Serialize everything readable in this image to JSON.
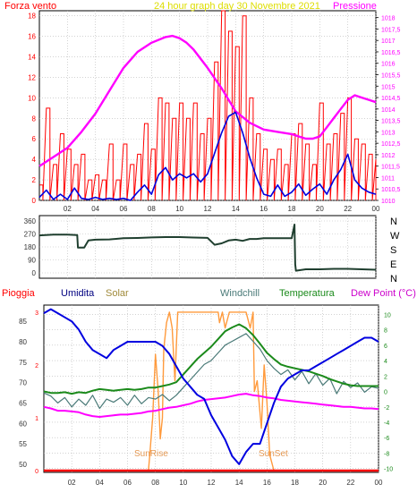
{
  "colors": {
    "frame": "#000000",
    "grid": "#b8b8b8",
    "wind": "#ff0000",
    "pressure": "#ff00ff",
    "speed": "#0000e0",
    "direction": "#1f3f2f",
    "humidity": "#0000e0",
    "solar": "#ff9a3c",
    "windchill": "#4a7a78",
    "temperature": "#1b8a1b",
    "dewpoint": "#ff00ff",
    "rain": "#ff0000",
    "ticklabel": "#333333"
  },
  "chart_data": [
    {
      "type": "line",
      "title": "24 hour graph day   30 Novembre 2021",
      "left_axis_title": "Forza vento",
      "right_axis_title": "Pressione",
      "x_ticks": [
        "02",
        "04",
        "06",
        "08",
        "10",
        "12",
        "14",
        "16",
        "18",
        "20",
        "22",
        "00"
      ],
      "y_left_ticks": [
        "0",
        "2",
        "4",
        "6",
        "8",
        "10",
        "12",
        "14",
        "16",
        "18"
      ],
      "y_left_range": [
        0,
        18.5
      ],
      "y_right_ticks": [
        "1010",
        "1010,5",
        "1011",
        "1011,5",
        "1012",
        "1012,5",
        "1013",
        "1013,5",
        "1014",
        "1014,5",
        "1015",
        "1015,5",
        "1016",
        "1016,5",
        "1017",
        "1017,5",
        "1018"
      ],
      "y_right_range": [
        1010,
        1018.3
      ],
      "x_range_hours": [
        0,
        24
      ],
      "series": [
        {
          "key": "pressure",
          "axis": "right",
          "x": [
            0,
            1,
            2,
            3,
            4,
            5,
            6,
            7,
            8,
            9,
            9.5,
            10,
            10.5,
            11,
            12,
            13,
            14,
            15,
            16,
            17,
            18,
            18.5,
            19,
            19.5,
            20,
            20.5,
            21,
            21.5,
            22,
            22.5,
            23,
            23.5,
            24
          ],
          "values": [
            1011.5,
            1011.9,
            1012.3,
            1013.0,
            1013.8,
            1014.8,
            1015.8,
            1016.5,
            1016.9,
            1017.15,
            1017.2,
            1017.1,
            1016.9,
            1016.6,
            1015.8,
            1014.9,
            1013.9,
            1013.4,
            1013.1,
            1013.0,
            1012.9,
            1012.8,
            1012.7,
            1012.7,
            1012.8,
            1013.2,
            1013.6,
            1014.0,
            1014.4,
            1014.6,
            1014.5,
            1014.4,
            1014.3
          ]
        },
        {
          "key": "speed",
          "axis": "left",
          "x": [
            0,
            0.5,
            1,
            1.5,
            2,
            2.5,
            3,
            3.5,
            4,
            4.5,
            5,
            5.5,
            6,
            6.5,
            7,
            7.5,
            8,
            8.5,
            9,
            9.5,
            10,
            10.5,
            11,
            11.5,
            12,
            12.5,
            13,
            13.5,
            14,
            14.5,
            15,
            15.5,
            16,
            16.5,
            17,
            17.5,
            18,
            18.5,
            19,
            19.5,
            20,
            20.5,
            21,
            21.5,
            22,
            22.5,
            23,
            23.5,
            24
          ],
          "values": [
            0.3,
            1.0,
            0.1,
            0.6,
            0.1,
            1.2,
            0.2,
            0.1,
            0.3,
            0.1,
            0.2,
            0.1,
            0.2,
            0.0,
            0.8,
            1.5,
            0.6,
            2.5,
            3.2,
            2.0,
            2.6,
            2.2,
            2.6,
            1.8,
            2.6,
            4.6,
            6.6,
            8.2,
            8.6,
            6.6,
            4.2,
            2.2,
            0.6,
            0.4,
            1.5,
            0.4,
            0.8,
            1.6,
            0.5,
            1.1,
            1.6,
            0.6,
            2.0,
            3.0,
            4.5,
            2.0,
            1.2,
            0.8,
            0.6
          ]
        },
        {
          "key": "wind",
          "axis": "left",
          "x": [
            0,
            0.5,
            1,
            1.5,
            2,
            2.5,
            3,
            3.5,
            4,
            4.5,
            5,
            5.5,
            6,
            6.5,
            7,
            7.5,
            8,
            8.5,
            9,
            9.5,
            10,
            10.5,
            11,
            11.5,
            12,
            12.5,
            13,
            13.5,
            14,
            14.5,
            15,
            15.5,
            16,
            16.5,
            17,
            17.5,
            18,
            18.5,
            19,
            19.5,
            20,
            20.5,
            21,
            21.5,
            22,
            22.5,
            23,
            23.5,
            24
          ],
          "values": [
            1.5,
            9.0,
            3.5,
            6.5,
            5.0,
            3.5,
            4.5,
            2.0,
            2.5,
            2.0,
            5.5,
            2.0,
            5.5,
            3.5,
            4.5,
            7.5,
            5.0,
            10.0,
            9.5,
            8.0,
            9.5,
            8.0,
            9.5,
            6.5,
            8.0,
            13.5,
            18.5,
            16.5,
            15.0,
            18.0,
            10.0,
            6.5,
            5.0,
            4.0,
            5.0,
            3.5,
            6.5,
            7.5,
            5.5,
            3.5,
            9.5,
            5.5,
            6.5,
            8.5,
            10.0,
            6.0,
            5.5,
            4.5,
            4.0
          ]
        }
      ]
    },
    {
      "type": "line",
      "y_ticks": [
        "360",
        "270",
        "180",
        "90",
        "0"
      ],
      "y_range": [
        0,
        360
      ],
      "compass_labels": [
        "N",
        "W",
        "S",
        "E",
        "N"
      ],
      "series": [
        {
          "key": "direction",
          "x": [
            0,
            1,
            2,
            2.7,
            2.75,
            3.2,
            3.5,
            4,
            5,
            6,
            7,
            8,
            9,
            10,
            11,
            12,
            12.5,
            13,
            13.5,
            14,
            14.5,
            15,
            15.5,
            16,
            17,
            18,
            18.2,
            18.25,
            18.3,
            19,
            20,
            21,
            22,
            23,
            24
          ],
          "values": [
            260,
            265,
            265,
            262,
            175,
            175,
            225,
            230,
            232,
            240,
            242,
            246,
            248,
            248,
            245,
            243,
            195,
            205,
            225,
            230,
            222,
            235,
            235,
            240,
            240,
            240,
            335,
            60,
            15,
            25,
            25,
            28,
            28,
            25,
            22
          ]
        }
      ]
    },
    {
      "type": "line",
      "legend": [
        "Pioggia",
        "Umidita",
        "Solar",
        "Windchill",
        "Temperatura",
        "Dew Point (°C)"
      ],
      "x_ticks": [
        "02",
        "04",
        "06",
        "08",
        "10",
        "12",
        "14",
        "16",
        "18",
        "20",
        "22",
        "00"
      ],
      "y_left_ticks": [
        "50",
        "55",
        "60",
        "65",
        "70",
        "75",
        "80",
        "85"
      ],
      "y_left_range": [
        48,
        89
      ],
      "y_right_ticks": [
        "-10",
        "-8",
        "-6",
        "-4",
        "-2",
        "0",
        "2",
        "4",
        "6",
        "8",
        "10"
      ],
      "y_right_range": [
        -10.5,
        11.2
      ],
      "y_rain_ticks": [
        "0",
        "1",
        "2",
        "3"
      ],
      "y_rain_range": [
        0,
        3.1
      ],
      "annotations": [
        "SunRise",
        "SunSet"
      ],
      "series": [
        {
          "key": "humidity",
          "axis": "left",
          "x": [
            0,
            0.5,
            1,
            1.5,
            2,
            2.5,
            3,
            3.5,
            4,
            4.5,
            5,
            5.5,
            6,
            6.5,
            7,
            7.5,
            8,
            8.5,
            9,
            9.5,
            10,
            10.5,
            11,
            11.5,
            12,
            12.5,
            13,
            13.5,
            14,
            14.5,
            15,
            15.5,
            16,
            16.5,
            17,
            17.5,
            18,
            18.5,
            19,
            19.5,
            20,
            20.5,
            21,
            21.5,
            22,
            22.5,
            23,
            23.5,
            24
          ],
          "values": [
            87,
            88,
            87,
            86,
            85,
            83,
            80,
            78,
            77,
            76,
            78,
            79,
            80,
            80,
            80,
            80,
            80,
            79,
            77,
            74,
            71,
            69,
            67,
            66,
            62,
            59,
            56,
            52,
            50,
            53,
            55,
            55,
            60,
            65,
            69,
            71,
            72,
            73,
            73,
            74,
            75,
            76,
            77,
            78,
            79,
            80,
            81,
            81,
            80
          ]
        },
        {
          "key": "windchill",
          "axis": "right",
          "x": [
            0,
            0.5,
            1,
            1.5,
            2,
            2.5,
            3,
            3.5,
            4,
            4.5,
            5,
            5.5,
            6,
            6.5,
            7,
            7.5,
            8,
            8.5,
            9,
            9.5,
            10,
            10.5,
            11,
            11.5,
            12,
            12.5,
            13,
            13.5,
            14,
            14.5,
            15,
            15.5,
            16,
            16.5,
            17,
            17.5,
            18,
            18.5,
            19,
            19.5,
            20,
            20.5,
            21,
            21.5,
            22,
            22.5,
            23,
            23.5,
            24
          ],
          "values": [
            -0.2,
            -0.6,
            -1.5,
            -0.8,
            -2.0,
            -1.0,
            -1.8,
            -0.5,
            -2.2,
            -1.0,
            -1.4,
            -0.8,
            -1.8,
            -0.5,
            -1.6,
            -0.8,
            -1.0,
            -0.4,
            -1.2,
            -0.5,
            0.5,
            1.5,
            2.5,
            3.5,
            4.0,
            5.0,
            6.0,
            6.5,
            7.0,
            7.5,
            6.5,
            5.5,
            4.0,
            3.0,
            2.2,
            2.8,
            1.5,
            2.6,
            1.0,
            2.3,
            0.8,
            1.7,
            -0.3,
            1.3,
            0.5,
            1.1,
            -0.1,
            0.6,
            0.4
          ]
        },
        {
          "key": "temperature",
          "axis": "right",
          "x": [
            0,
            0.5,
            1,
            1.5,
            2,
            2.5,
            3,
            3.5,
            4,
            4.5,
            5,
            5.5,
            6,
            6.5,
            7,
            7.5,
            8,
            8.5,
            9,
            9.5,
            10,
            10.5,
            11,
            11.5,
            12,
            12.5,
            13,
            13.5,
            14,
            14.5,
            15,
            15.5,
            16,
            16.5,
            17,
            17.5,
            18,
            18.5,
            19,
            19.5,
            20,
            20.5,
            21,
            21.5,
            22,
            22.5,
            23,
            23.5,
            24
          ],
          "values": [
            0.0,
            -0.2,
            -0.2,
            -0.1,
            -0.3,
            -0.1,
            -0.2,
            0.1,
            0.3,
            0.2,
            0.1,
            0.2,
            0.3,
            0.2,
            0.3,
            0.5,
            0.5,
            0.7,
            0.9,
            1.2,
            2.2,
            3.2,
            4.2,
            5.0,
            5.8,
            6.8,
            7.8,
            8.3,
            8.7,
            8.2,
            7.3,
            6.2,
            5.0,
            4.2,
            3.5,
            3.2,
            3.0,
            2.8,
            2.6,
            2.3,
            2.0,
            1.6,
            1.3,
            1.0,
            0.8,
            0.7,
            0.7,
            0.7,
            0.7
          ]
        },
        {
          "key": "dewpoint",
          "axis": "right",
          "x": [
            0,
            0.5,
            1,
            1.5,
            2,
            2.5,
            3,
            3.5,
            4,
            4.5,
            5,
            5.5,
            6,
            6.5,
            7,
            7.5,
            8,
            8.5,
            9,
            9.5,
            10,
            10.5,
            11,
            11.5,
            12,
            12.5,
            13,
            13.5,
            14,
            14.5,
            15,
            15.5,
            16,
            16.5,
            17,
            17.5,
            18,
            18.5,
            19,
            19.5,
            20,
            20.5,
            21,
            21.5,
            22,
            22.5,
            23,
            23.5,
            24
          ],
          "values": [
            -2.0,
            -2.2,
            -2.5,
            -2.5,
            -2.6,
            -2.7,
            -3.0,
            -3.2,
            -3.3,
            -3.2,
            -3.1,
            -3.0,
            -3.0,
            -2.9,
            -2.8,
            -2.6,
            -2.5,
            -2.3,
            -2.1,
            -2.0,
            -1.8,
            -1.6,
            -1.3,
            -1.1,
            -1.0,
            -0.9,
            -0.8,
            -0.6,
            -0.4,
            -0.3,
            -0.5,
            -0.6,
            -0.8,
            -0.9,
            -1.1,
            -1.2,
            -1.3,
            -1.4,
            -1.5,
            -1.6,
            -1.7,
            -1.8,
            -1.9,
            -2.0,
            -2.0,
            -2.1,
            -2.2,
            -2.2,
            -2.3
          ]
        },
        {
          "key": "solar",
          "axis": "rain",
          "x": [
            0,
            7.5,
            7.6,
            7.8,
            8.0,
            8.2,
            8.35,
            8.5,
            8.6,
            8.8,
            9.0,
            9.2,
            9.4,
            9.6,
            10.0,
            12.5,
            12.6,
            12.8,
            13.0,
            13.3,
            14.0,
            14.5,
            14.8,
            15.0,
            15.1,
            15.3,
            15.6,
            15.8,
            16.0,
            16.2,
            16.5,
            17.5,
            24
          ],
          "values": [
            0,
            0,
            0.3,
            1.0,
            2.2,
            1.5,
            0.6,
            1.0,
            2.3,
            2.8,
            3.0,
            2.7,
            1.7,
            3.0,
            3.0,
            3.0,
            2.8,
            3.0,
            2.7,
            3.0,
            3.0,
            3.0,
            2.7,
            3.0,
            1.5,
            1.7,
            0.8,
            2.0,
            1.3,
            0.3,
            0,
            0,
            0
          ]
        },
        {
          "key": "rain",
          "axis": "rain",
          "x": [
            0,
            24
          ],
          "values": [
            0,
            0
          ]
        }
      ]
    }
  ]
}
